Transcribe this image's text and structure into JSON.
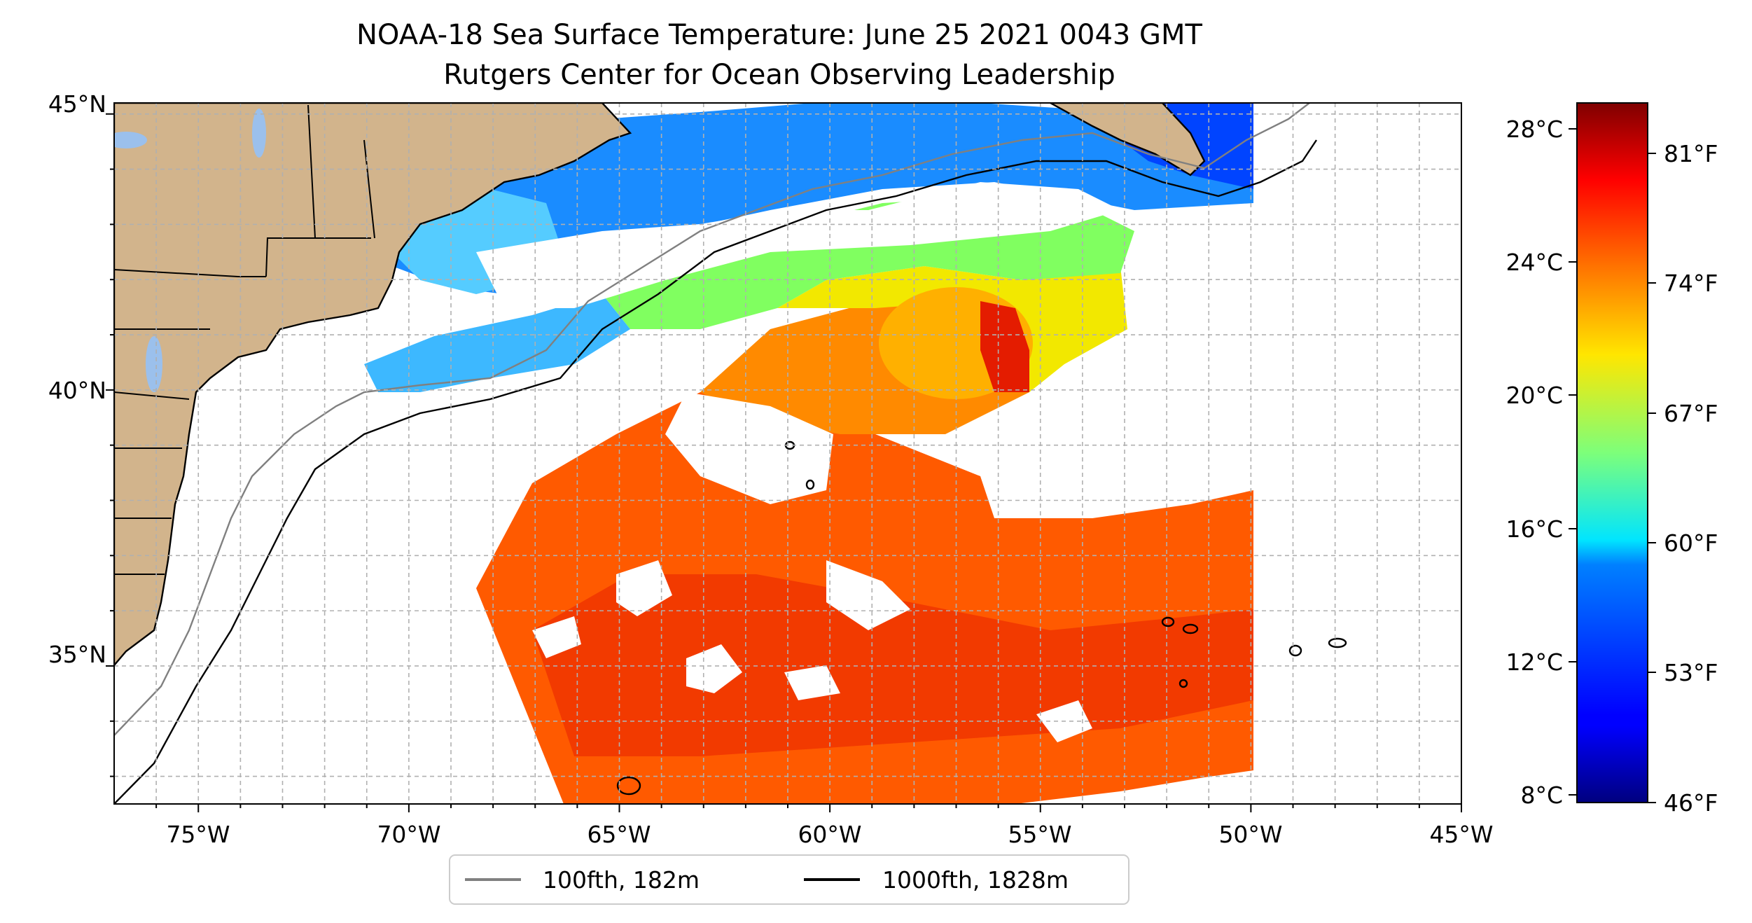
{
  "title": {
    "line1": "NOAA-18 Sea Surface Temperature: June 25 2021 0043 GMT",
    "line2": "Rutgers Center for Ocean Observing Leadership"
  },
  "map": {
    "lon_range": [
      -77,
      -45
    ],
    "lat_range": [
      32.5,
      45.2
    ],
    "lon_ticks": [
      "75°W",
      "70°W",
      "65°W",
      "60°W",
      "55°W",
      "50°W",
      "45°W"
    ],
    "lat_ticks": [
      "35°N",
      "40°N",
      "45°N"
    ],
    "land_color": "#d2b48c",
    "lake_color": "#9bc0ec",
    "gridlines": true
  },
  "legend": {
    "items": [
      {
        "label": "100fth, 182m",
        "color": "#808080"
      },
      {
        "label": "1000fth, 1828m",
        "color": "#000000"
      }
    ]
  },
  "colorbar": {
    "colormap": "jet",
    "celsius_ticks": [
      "28°C",
      "24°C",
      "20°C",
      "16°C",
      "12°C",
      "8°C"
    ],
    "fahrenheit_ticks": [
      "81°F",
      "74°F",
      "67°F",
      "60°F",
      "53°F",
      "46°F"
    ],
    "range_c": [
      7.5,
      28.5
    ]
  }
}
